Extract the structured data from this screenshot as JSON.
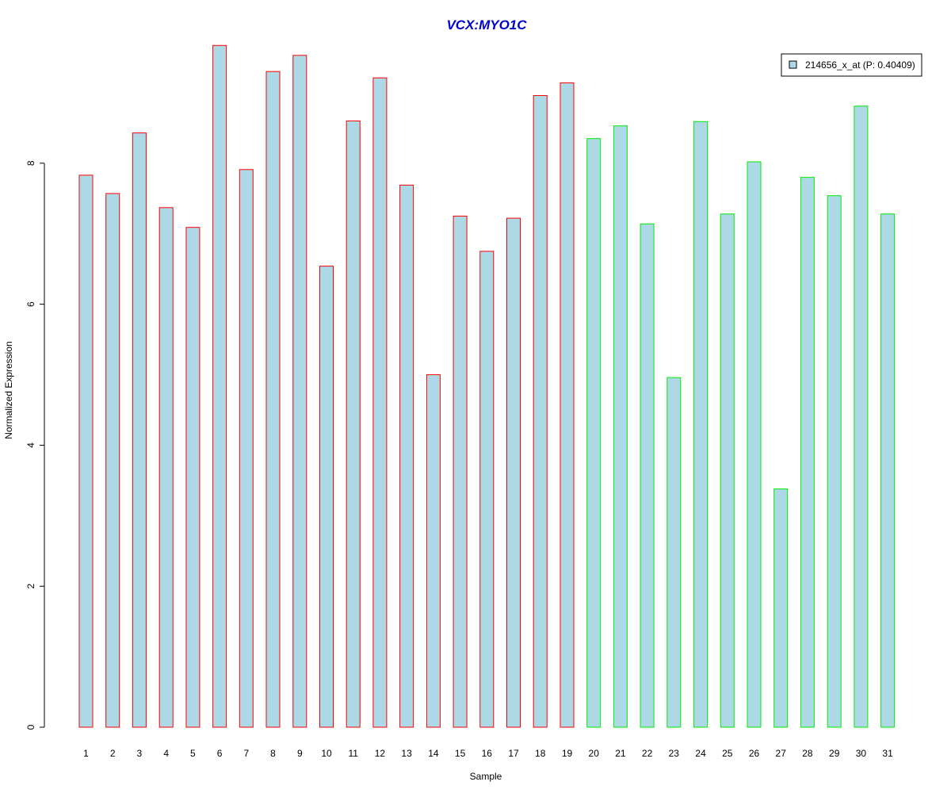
{
  "chart_data": {
    "type": "bar",
    "title": "VCX:MYO1C",
    "xlabel": "Sample",
    "ylabel": "Normalized Expression",
    "ylim": [
      0,
      10
    ],
    "yticks": [
      0,
      2,
      4,
      6,
      8
    ],
    "categories": [
      "1",
      "2",
      "3",
      "4",
      "5",
      "6",
      "7",
      "8",
      "9",
      "10",
      "11",
      "12",
      "13",
      "14",
      "15",
      "16",
      "17",
      "18",
      "19",
      "20",
      "21",
      "22",
      "23",
      "24",
      "25",
      "26",
      "27",
      "28",
      "29",
      "30",
      "31"
    ],
    "series": [
      {
        "name": "214656_x_at (P: 0.40409)",
        "values": [
          7.83,
          7.57,
          8.43,
          7.37,
          7.09,
          9.67,
          7.91,
          9.3,
          9.53,
          6.54,
          8.6,
          9.21,
          7.69,
          5.0,
          7.25,
          6.75,
          7.22,
          8.96,
          9.14,
          8.35,
          8.53,
          7.14,
          4.96,
          8.59,
          7.28,
          8.02,
          3.38,
          7.8,
          7.54,
          8.81,
          7.28
        ]
      }
    ],
    "bar_fill": "#add8e6",
    "group_borders": [
      "#ff0000",
      "#ff0000",
      "#ff0000",
      "#ff0000",
      "#ff0000",
      "#ff0000",
      "#ff0000",
      "#ff0000",
      "#ff0000",
      "#ff0000",
      "#ff0000",
      "#ff0000",
      "#ff0000",
      "#ff0000",
      "#ff0000",
      "#ff0000",
      "#ff0000",
      "#ff0000",
      "#ff0000",
      "#00ee00",
      "#00ee00",
      "#00ee00",
      "#00ee00",
      "#00ee00",
      "#00ee00",
      "#00ee00",
      "#00ee00",
      "#00ee00",
      "#00ee00",
      "#00ee00",
      "#00ee00"
    ],
    "title_color": "#0000cc",
    "legend_position": "top-right",
    "grid": false
  }
}
